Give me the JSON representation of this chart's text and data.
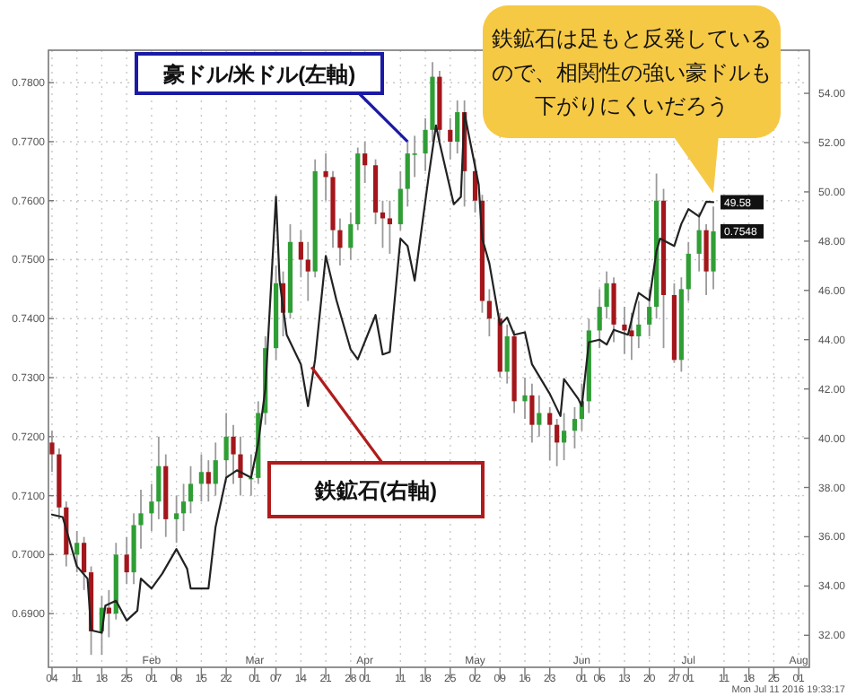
{
  "chart_data": {
    "type": "candlestick",
    "xlim": [
      "2016-01-03",
      "2016-08-04"
    ],
    "xticks": [
      {
        "value": "2016-01-04",
        "label": "04"
      },
      {
        "value": "2016-01-11",
        "label": "11"
      },
      {
        "value": "2016-01-18",
        "label": "18"
      },
      {
        "value": "2016-01-25",
        "label": "25"
      },
      {
        "value": "2016-02-01",
        "label": "Feb\n01"
      },
      {
        "value": "2016-02-08",
        "label": "08"
      },
      {
        "value": "2016-02-15",
        "label": "15"
      },
      {
        "value": "2016-02-22",
        "label": "22"
      },
      {
        "value": "2016-03-01",
        "label": "Mar\n01"
      },
      {
        "value": "2016-03-07",
        "label": "07"
      },
      {
        "value": "2016-03-14",
        "label": "14"
      },
      {
        "value": "2016-03-21",
        "label": "21"
      },
      {
        "value": "2016-03-28",
        "label": "28"
      },
      {
        "value": "2016-04-01",
        "label": "Apr\n01"
      },
      {
        "value": "2016-04-11",
        "label": "11"
      },
      {
        "value": "2016-04-18",
        "label": "18"
      },
      {
        "value": "2016-04-25",
        "label": "25"
      },
      {
        "value": "2016-05-02",
        "label": "May\n02"
      },
      {
        "value": "2016-05-09",
        "label": "09"
      },
      {
        "value": "2016-05-16",
        "label": "16"
      },
      {
        "value": "2016-05-23",
        "label": "23"
      },
      {
        "value": "2016-06-01",
        "label": "Jun\n01"
      },
      {
        "value": "2016-06-06",
        "label": "06"
      },
      {
        "value": "2016-06-13",
        "label": "13"
      },
      {
        "value": "2016-06-20",
        "label": "20"
      },
      {
        "value": "2016-06-27",
        "label": "27"
      },
      {
        "value": "2016-07-01",
        "label": "Jul\n01"
      },
      {
        "value": "2016-07-11",
        "label": "11"
      },
      {
        "value": "2016-07-18",
        "label": "18"
      },
      {
        "value": "2016-07-25",
        "label": "25"
      },
      {
        "value": "2016-08-01",
        "label": "Aug\n01"
      }
    ],
    "ylim": [
      0.6809,
      0.7855
    ],
    "yticks": [
      {
        "value": 0.69,
        "label": "0.6900"
      },
      {
        "value": 0.7,
        "label": "0.7000"
      },
      {
        "value": 0.71,
        "label": "0.7100"
      },
      {
        "value": 0.72,
        "label": "0.7200"
      },
      {
        "value": 0.73,
        "label": "0.7300"
      },
      {
        "value": 0.74,
        "label": "0.7400"
      },
      {
        "value": 0.75,
        "label": "0.7500"
      },
      {
        "value": 0.76,
        "label": "0.7600"
      },
      {
        "value": 0.77,
        "label": "0.7700"
      },
      {
        "value": 0.78,
        "label": "0.7800"
      }
    ],
    "y2lim": [
      30.7,
      55.75
    ],
    "y2ticks": [
      {
        "value": 32,
        "label": "32.00"
      },
      {
        "value": 34,
        "label": "34.00"
      },
      {
        "value": 36,
        "label": "36.00"
      },
      {
        "value": 38,
        "label": "38.00"
      },
      {
        "value": 40,
        "label": "40.00"
      },
      {
        "value": 42,
        "label": "42.00"
      },
      {
        "value": 44,
        "label": "44.00"
      },
      {
        "value": 46,
        "label": "46.00"
      },
      {
        "value": 48,
        "label": "48.00"
      },
      {
        "value": 50,
        "label": "50.00"
      },
      {
        "value": 52,
        "label": "52.00"
      },
      {
        "value": 54,
        "label": "54.00"
      }
    ],
    "grid": true,
    "series": [
      {
        "type": "candlestick",
        "colors": [
          "#a3161b",
          "#a3161b",
          "#a3161b",
          "#2f9e35",
          "#a3161b",
          "#a3161b",
          "#2f9e35",
          "#a3161b",
          "#2f9e35",
          "#a3161b",
          "#2f9e35",
          "#2f9e35",
          "#2f9e35",
          "#2f9e35",
          "#a3161b",
          "#2f9e35",
          "#2f9e35",
          "#2f9e35",
          "#2f9e35",
          "#a3161b",
          "#2f9e35",
          "#2f9e35",
          "#a3161b",
          "#a3161b",
          "#2f9e35",
          "#2f9e35",
          "#2f9e35",
          "#2f9e35",
          "#a3161b",
          "#2f9e35",
          "#a3161b",
          "#a3161b",
          "#2f9e35",
          "#a3161b",
          "#a3161b",
          "#a3161b",
          "#2f9e35",
          "#2f9e35",
          "#a3161b",
          "#a3161b",
          "#a3161b",
          "#a3161b",
          "#2f9e35",
          "#2f9e35",
          "#2f9e35",
          "#2f9e35",
          "#2f9e35",
          "#a3161b",
          "#a3161b",
          "#2f9e35",
          "#a3161b",
          "#a3161b",
          "#a3161b",
          "#a3161b",
          "#a3161b",
          "#2f9e35",
          "#a3161b",
          "#2f9e35",
          "#a3161b",
          "#2f9e35",
          "#a3161b",
          "#a3161b",
          "#2f9e35",
          "#2f9e35",
          "#2f9e35",
          "#2f9e35",
          "#2f9e35",
          "#2f9e35",
          "#a3161b",
          "#a3161b",
          "#a3161b",
          "#2f9e35",
          "#2f9e35",
          "#2f9e35",
          "#a3161b",
          "#a3161b",
          "#2f9e35",
          "#2f9e35",
          "#2f9e35",
          "#a3161b",
          "#2f9e35"
        ],
        "x": [
          "2016-01-04",
          "2016-01-06",
          "2016-01-08",
          "2016-01-11",
          "2016-01-13",
          "2016-01-15",
          "2016-01-18",
          "2016-01-20",
          "2016-01-22",
          "2016-01-25",
          "2016-01-27",
          "2016-01-29",
          "2016-02-01",
          "2016-02-03",
          "2016-02-05",
          "2016-02-08",
          "2016-02-10",
          "2016-02-12",
          "2016-02-15",
          "2016-02-17",
          "2016-02-19",
          "2016-02-22",
          "2016-02-24",
          "2016-02-26",
          "2016-02-29",
          "2016-03-02",
          "2016-03-04",
          "2016-03-07",
          "2016-03-09",
          "2016-03-11",
          "2016-03-14",
          "2016-03-16",
          "2016-03-18",
          "2016-03-21",
          "2016-03-23",
          "2016-03-25",
          "2016-03-28",
          "2016-03-30",
          "2016-04-01",
          "2016-04-04",
          "2016-04-06",
          "2016-04-08",
          "2016-04-11",
          "2016-04-13",
          "2016-04-15",
          "2016-04-18",
          "2016-04-20",
          "2016-04-22",
          "2016-04-25",
          "2016-04-27",
          "2016-04-29",
          "2016-05-02",
          "2016-05-04",
          "2016-05-06",
          "2016-05-09",
          "2016-05-11",
          "2016-05-13",
          "2016-05-16",
          "2016-05-18",
          "2016-05-20",
          "2016-05-23",
          "2016-05-25",
          "2016-05-27",
          "2016-05-30",
          "2016-06-01",
          "2016-06-03",
          "2016-06-06",
          "2016-06-08",
          "2016-06-10",
          "2016-06-13",
          "2016-06-15",
          "2016-06-17",
          "2016-06-20",
          "2016-06-22",
          "2016-06-24",
          "2016-06-27",
          "2016-06-29",
          "2016-07-01",
          "2016-07-04",
          "2016-07-06",
          "2016-07-08"
        ],
        "ohlc": [
          [
            0.719,
            0.721,
            0.714,
            0.717
          ],
          [
            0.717,
            0.718,
            0.706,
            0.708
          ],
          [
            0.708,
            0.709,
            0.698,
            0.7
          ],
          [
            0.7,
            0.704,
            0.697,
            0.702
          ],
          [
            0.702,
            0.703,
            0.694,
            0.697
          ],
          [
            0.697,
            0.698,
            0.683,
            0.687
          ],
          [
            0.687,
            0.693,
            0.683,
            0.691
          ],
          [
            0.691,
            0.694,
            0.686,
            0.69
          ],
          [
            0.69,
            0.702,
            0.689,
            0.7
          ],
          [
            0.7,
            0.703,
            0.695,
            0.697
          ],
          [
            0.697,
            0.707,
            0.695,
            0.705
          ],
          [
            0.705,
            0.711,
            0.701,
            0.707
          ],
          [
            0.707,
            0.712,
            0.704,
            0.709
          ],
          [
            0.709,
            0.72,
            0.706,
            0.715
          ],
          [
            0.715,
            0.717,
            0.703,
            0.706
          ],
          [
            0.706,
            0.71,
            0.702,
            0.707
          ],
          [
            0.707,
            0.712,
            0.704,
            0.709
          ],
          [
            0.709,
            0.715,
            0.707,
            0.712
          ],
          [
            0.712,
            0.717,
            0.709,
            0.714
          ],
          [
            0.714,
            0.716,
            0.709,
            0.712
          ],
          [
            0.712,
            0.719,
            0.71,
            0.716
          ],
          [
            0.716,
            0.724,
            0.713,
            0.72
          ],
          [
            0.72,
            0.722,
            0.712,
            0.717
          ],
          [
            0.717,
            0.72,
            0.71,
            0.713
          ],
          [
            0.713,
            0.717,
            0.71,
            0.713
          ],
          [
            0.713,
            0.726,
            0.712,
            0.724
          ],
          [
            0.724,
            0.737,
            0.722,
            0.735
          ],
          [
            0.735,
            0.749,
            0.733,
            0.746
          ],
          [
            0.746,
            0.748,
            0.737,
            0.741
          ],
          [
            0.741,
            0.756,
            0.74,
            0.753
          ],
          [
            0.753,
            0.755,
            0.747,
            0.75
          ],
          [
            0.75,
            0.753,
            0.743,
            0.748
          ],
          [
            0.748,
            0.767,
            0.747,
            0.765
          ],
          [
            0.765,
            0.768,
            0.76,
            0.764
          ],
          [
            0.764,
            0.765,
            0.752,
            0.755
          ],
          [
            0.755,
            0.757,
            0.749,
            0.752
          ],
          [
            0.752,
            0.758,
            0.75,
            0.756
          ],
          [
            0.756,
            0.769,
            0.755,
            0.768
          ],
          [
            0.768,
            0.77,
            0.763,
            0.766
          ],
          [
            0.766,
            0.767,
            0.756,
            0.758
          ],
          [
            0.758,
            0.76,
            0.752,
            0.757
          ],
          [
            0.757,
            0.76,
            0.751,
            0.756
          ],
          [
            0.756,
            0.765,
            0.755,
            0.762
          ],
          [
            0.762,
            0.77,
            0.759,
            0.768
          ],
          [
            0.768,
            0.771,
            0.764,
            0.768
          ],
          [
            0.768,
            0.774,
            0.765,
            0.772
          ],
          [
            0.772,
            0.7835,
            0.77,
            0.781
          ],
          [
            0.781,
            0.782,
            0.77,
            0.772
          ],
          [
            0.772,
            0.774,
            0.767,
            0.77
          ],
          [
            0.77,
            0.777,
            0.768,
            0.775
          ],
          [
            0.775,
            0.777,
            0.759,
            0.765
          ],
          [
            0.765,
            0.767,
            0.758,
            0.76
          ],
          [
            0.76,
            0.761,
            0.741,
            0.743
          ],
          [
            0.743,
            0.745,
            0.737,
            0.74
          ],
          [
            0.74,
            0.741,
            0.73,
            0.731
          ],
          [
            0.731,
            0.739,
            0.729,
            0.737
          ],
          [
            0.737,
            0.738,
            0.724,
            0.726
          ],
          [
            0.726,
            0.73,
            0.723,
            0.727
          ],
          [
            0.727,
            0.729,
            0.719,
            0.722
          ],
          [
            0.722,
            0.727,
            0.72,
            0.724
          ],
          [
            0.724,
            0.725,
            0.716,
            0.722
          ],
          [
            0.722,
            0.723,
            0.715,
            0.719
          ],
          [
            0.719,
            0.724,
            0.716,
            0.721
          ],
          [
            0.721,
            0.725,
            0.718,
            0.723
          ],
          [
            0.723,
            0.729,
            0.721,
            0.726
          ],
          [
            0.726,
            0.74,
            0.724,
            0.738
          ],
          [
            0.738,
            0.745,
            0.735,
            0.742
          ],
          [
            0.742,
            0.748,
            0.74,
            0.746
          ],
          [
            0.746,
            0.747,
            0.736,
            0.739
          ],
          [
            0.739,
            0.742,
            0.734,
            0.738
          ],
          [
            0.738,
            0.741,
            0.733,
            0.737
          ],
          [
            0.737,
            0.743,
            0.735,
            0.739
          ],
          [
            0.739,
            0.745,
            0.737,
            0.742
          ],
          [
            0.742,
            0.7646,
            0.74,
            0.76
          ],
          [
            0.76,
            0.762,
            0.735,
            0.744
          ],
          [
            0.744,
            0.746,
            0.7325,
            0.733
          ],
          [
            0.733,
            0.747,
            0.731,
            0.745
          ],
          [
            0.745,
            0.753,
            0.743,
            0.751
          ],
          [
            0.751,
            0.758,
            0.748,
            0.755
          ],
          [
            0.755,
            0.756,
            0.744,
            0.748
          ],
          [
            0.748,
            0.759,
            0.745,
            0.7548
          ]
        ],
        "value_labels": [
          null,
          null,
          null,
          null,
          null,
          null,
          null,
          null,
          null,
          null,
          null,
          null,
          null,
          null,
          null,
          null,
          null,
          null,
          null,
          null,
          null,
          null,
          null,
          null,
          null,
          null,
          null,
          null,
          null,
          null,
          null,
          null,
          null,
          null,
          null,
          null,
          null,
          null,
          null,
          null,
          null,
          null,
          null,
          null,
          null,
          null,
          null,
          null,
          null,
          null,
          null,
          null,
          null,
          null,
          null,
          null,
          null,
          null,
          null,
          null,
          null,
          null,
          null,
          null,
          null,
          null,
          null,
          null,
          null,
          null,
          null,
          null,
          null,
          null,
          null,
          null,
          null,
          null,
          null,
          null,
          "0.7548"
        ]
      },
      {
        "type": "line",
        "axis": "y2",
        "color": "#222222",
        "x": [
          "2016-01-04",
          "2016-01-07",
          "2016-01-11",
          "2016-01-14",
          "2016-01-15",
          "2016-01-18",
          "2016-01-19",
          "2016-01-22",
          "2016-01-25",
          "2016-01-28",
          "2016-01-29",
          "2016-02-01",
          "2016-02-04",
          "2016-02-08",
          "2016-02-11",
          "2016-02-12",
          "2016-02-17",
          "2016-02-19",
          "2016-02-22",
          "2016-02-25",
          "2016-02-29",
          "2016-03-02",
          "2016-03-04",
          "2016-03-07",
          "2016-03-08",
          "2016-03-10",
          "2016-03-14",
          "2016-03-16",
          "2016-03-18",
          "2016-03-21",
          "2016-03-24",
          "2016-03-28",
          "2016-03-30",
          "2016-04-04",
          "2016-04-06",
          "2016-04-08",
          "2016-04-11",
          "2016-04-13",
          "2016-04-15",
          "2016-04-19",
          "2016-04-21",
          "2016-04-22",
          "2016-04-26",
          "2016-04-28",
          "2016-04-29",
          "2016-05-03",
          "2016-05-04",
          "2016-05-06",
          "2016-05-09",
          "2016-05-11",
          "2016-05-13",
          "2016-05-16",
          "2016-05-18",
          "2016-05-23",
          "2016-05-26",
          "2016-05-27",
          "2016-05-31",
          "2016-06-01",
          "2016-06-03",
          "2016-06-06",
          "2016-06-08",
          "2016-06-10",
          "2016-06-14",
          "2016-06-16",
          "2016-06-17",
          "2016-06-20",
          "2016-06-22",
          "2016-06-23",
          "2016-06-27",
          "2016-06-29",
          "2016-07-01",
          "2016-07-04",
          "2016-07-06",
          "2016-07-08"
        ],
        "values": [
          36.9,
          36.8,
          34.8,
          34.3,
          32.2,
          32.1,
          33.2,
          33.4,
          32.6,
          33.0,
          34.3,
          33.9,
          34.5,
          35.5,
          34.7,
          33.9,
          33.9,
          36.4,
          38.4,
          38.7,
          38.4,
          39.8,
          42.0,
          49.8,
          46.4,
          44.2,
          43.0,
          41.3,
          43.2,
          47.4,
          45.6,
          43.6,
          43.2,
          45.0,
          43.4,
          43.5,
          48.1,
          47.8,
          46.4,
          50.7,
          52.7,
          52.0,
          49.5,
          49.8,
          53.2,
          50.3,
          48.1,
          47.1,
          44.6,
          44.9,
          44.2,
          44.3,
          43.0,
          41.8,
          40.9,
          42.4,
          41.6,
          41.3,
          43.9,
          44.0,
          43.8,
          44.4,
          44.2,
          45.4,
          45.9,
          45.6,
          47.6,
          48.1,
          47.8,
          48.7,
          49.3,
          49.0,
          49.6,
          49.58
        ],
        "value_labels": [
          null,
          null,
          null,
          null,
          null,
          null,
          null,
          null,
          null,
          null,
          null,
          null,
          null,
          null,
          null,
          null,
          null,
          null,
          null,
          null,
          null,
          null,
          null,
          null,
          null,
          null,
          null,
          null,
          null,
          null,
          null,
          null,
          null,
          null,
          null,
          null,
          null,
          null,
          null,
          null,
          null,
          null,
          null,
          null,
          null,
          null,
          null,
          null,
          null,
          null,
          null,
          null,
          null,
          null,
          null,
          null,
          null,
          null,
          null,
          null,
          null,
          null,
          null,
          null,
          null,
          null,
          null,
          null,
          null,
          null,
          null,
          null,
          null,
          "49.58"
        ]
      }
    ],
    "annotations": [
      {
        "text": "豪ドル/米ドル(左軸)",
        "x": "2016-04-13",
        "y": 0.77
      },
      {
        "text": "鉄鉱石(右軸)",
        "x": "2016-03-17",
        "y": 0.7318
      },
      "鉄鉱石は足もと反発しているので、相関性の強い豪ドルも下がりにくいだろう",
      "Mon Jul 11 2016 19:33:17"
    ]
  }
}
